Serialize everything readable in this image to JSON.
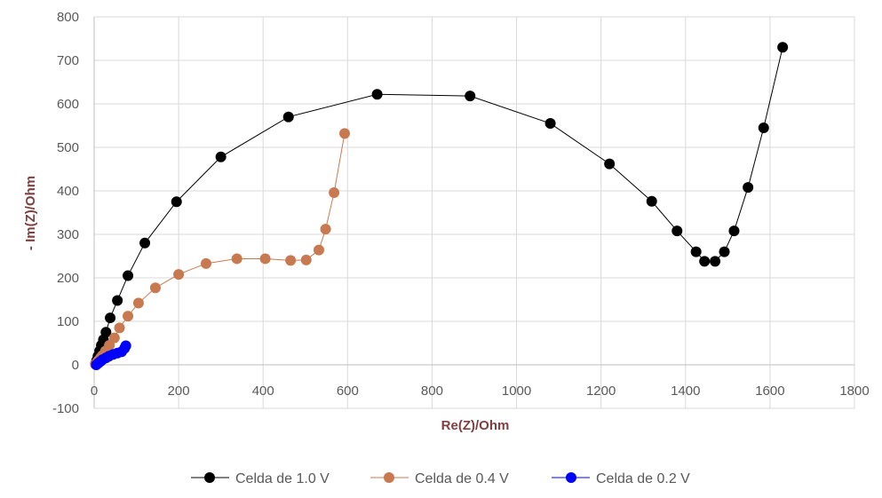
{
  "chart_data": {
    "type": "scatter",
    "title": "",
    "xlabel": "Re(Z)/Ohm",
    "ylabel": "- Im(Z)/Ohm",
    "xlim": [
      0,
      1800
    ],
    "ylim": [
      -100,
      800
    ],
    "xticks": [
      0,
      200,
      400,
      600,
      800,
      1000,
      1200,
      1400,
      1600,
      1800
    ],
    "yticks": [
      -100,
      0,
      100,
      200,
      300,
      400,
      500,
      600,
      700,
      800
    ],
    "grid": "vertical and horizontal",
    "legend_position": "bottom",
    "series": [
      {
        "name": "Celda de 1.0 V",
        "color": "#000000",
        "x": [
          3,
          6,
          9,
          13,
          17,
          22,
          28,
          38,
          55,
          80,
          120,
          195,
          300,
          460,
          670,
          890,
          1080,
          1220,
          1320,
          1380,
          1425,
          1445,
          1470,
          1492,
          1515,
          1548,
          1585,
          1630
        ],
        "y": [
          2,
          10,
          20,
          32,
          45,
          58,
          75,
          108,
          148,
          205,
          280,
          375,
          478,
          570,
          622,
          618,
          555,
          462,
          376,
          308,
          260,
          238,
          238,
          260,
          308,
          408,
          545,
          730
        ]
      },
      {
        "name": "Celda de 0.4 V",
        "color": "#c8794f",
        "x": [
          3,
          6,
          10,
          15,
          20,
          27,
          36,
          48,
          60,
          80,
          105,
          145,
          200,
          265,
          338,
          405,
          465,
          502,
          532,
          548,
          568,
          593
        ],
        "y": [
          1,
          5,
          10,
          16,
          22,
          32,
          45,
          62,
          85,
          112,
          142,
          177,
          208,
          233,
          244,
          244,
          240,
          241,
          264,
          312,
          396,
          532
        ]
      },
      {
        "name": "Celda de 0.2 V",
        "color": "#0000ff",
        "x": [
          5,
          10,
          15,
          20,
          28,
          35,
          45,
          55,
          65,
          72,
          75
        ],
        "y": [
          0,
          4,
          8,
          12,
          16,
          20,
          24,
          27,
          30,
          38,
          44
        ]
      }
    ]
  }
}
